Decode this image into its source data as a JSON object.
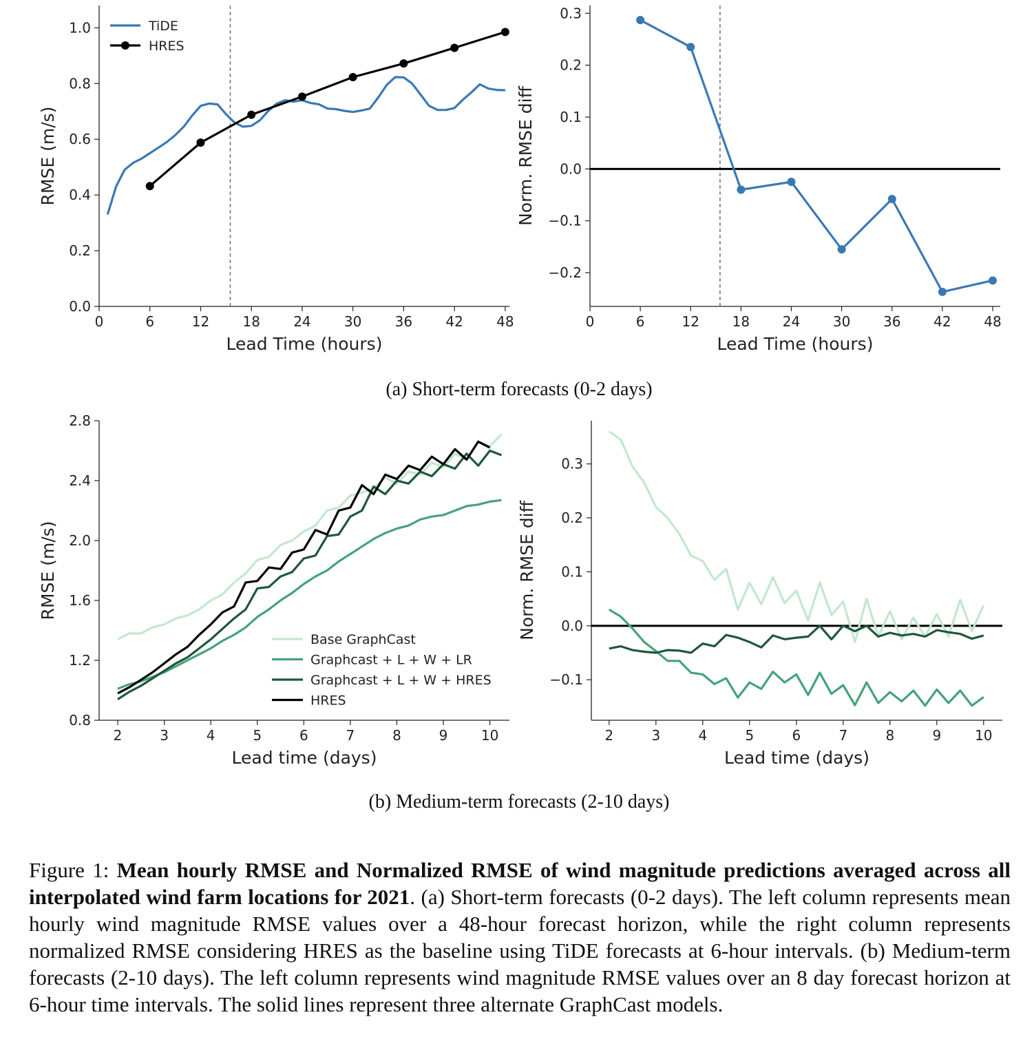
{
  "chart_data": [
    {
      "type": "line",
      "panel": "a-left",
      "xlabel": "Lead Time (hours)",
      "ylabel": "RMSE (m/s)",
      "xlim": [
        0,
        48.5
      ],
      "ylim": [
        0,
        1.08
      ],
      "xticks": [
        0,
        6,
        12,
        18,
        24,
        30,
        36,
        42,
        48
      ],
      "yticks": [
        0.0,
        0.2,
        0.4,
        0.6,
        0.8,
        1.0
      ],
      "ytick_labels": [
        "0.0",
        "0.2",
        "0.4",
        "0.6",
        "0.8",
        "1.0"
      ],
      "vline": 15.5,
      "legend": "top-left",
      "series": [
        {
          "name": "TiDE",
          "color": "#3a78b5",
          "markers": false,
          "x": [
            1,
            2,
            3,
            4,
            5,
            6,
            7,
            8,
            9,
            10,
            11,
            12,
            13,
            14,
            15,
            16,
            17,
            18,
            19,
            20,
            21,
            22,
            23,
            24,
            25,
            26,
            27,
            28,
            29,
            30,
            31,
            32,
            33,
            34,
            35,
            36,
            37,
            38,
            39,
            40,
            41,
            42,
            43,
            44,
            45,
            46,
            47,
            48
          ],
          "y": [
            0.33,
            0.43,
            0.49,
            0.515,
            0.53,
            0.55,
            0.57,
            0.59,
            0.615,
            0.645,
            0.685,
            0.72,
            0.728,
            0.725,
            0.69,
            0.66,
            0.645,
            0.648,
            0.668,
            0.702,
            0.728,
            0.74,
            0.735,
            0.74,
            0.73,
            0.725,
            0.71,
            0.708,
            0.702,
            0.698,
            0.703,
            0.71,
            0.75,
            0.795,
            0.823,
            0.822,
            0.8,
            0.76,
            0.72,
            0.705,
            0.705,
            0.712,
            0.742,
            0.768,
            0.797,
            0.782,
            0.777,
            0.776
          ]
        },
        {
          "name": "HRES",
          "color": "#000000",
          "markers": true,
          "x": [
            6,
            12,
            18,
            24,
            30,
            36,
            42,
            48
          ],
          "y": [
            0.432,
            0.588,
            0.688,
            0.753,
            0.823,
            0.872,
            0.928,
            0.985
          ]
        }
      ]
    },
    {
      "type": "line",
      "panel": "a-right",
      "xlabel": "Lead Time (hours)",
      "ylabel": "Norm. RMSE diff",
      "xlim": [
        0,
        48.9
      ],
      "ylim": [
        -0.265,
        0.315
      ],
      "xticks": [
        0,
        6,
        12,
        18,
        24,
        30,
        36,
        42,
        48
      ],
      "yticks": [
        -0.2,
        -0.1,
        0.0,
        0.1,
        0.2,
        0.3
      ],
      "ytick_labels": [
        "−0.2",
        "−0.1",
        "0.0",
        "0.1",
        "0.2",
        "0.3"
      ],
      "vline": 15.5,
      "hline": 0,
      "series": [
        {
          "color": "#3a78b5",
          "markers": true,
          "x": [
            6,
            12,
            18,
            24,
            30,
            36,
            42,
            48
          ],
          "y": [
            0.287,
            0.235,
            -0.04,
            -0.025,
            -0.155,
            -0.058,
            -0.237,
            -0.215
          ]
        }
      ]
    },
    {
      "type": "line",
      "panel": "b-left",
      "xlabel": "Lead time (days)",
      "ylabel": "RMSE (m/s)",
      "xlim": [
        1.6,
        10.42
      ],
      "ylim": [
        0.8,
        2.8
      ],
      "xticks": [
        2,
        3,
        4,
        5,
        6,
        7,
        8,
        9,
        10
      ],
      "yticks": [
        0.8,
        1.2,
        1.6,
        2.0,
        2.4,
        2.8
      ],
      "ytick_labels": [
        "0.8",
        "1.2",
        "1.6",
        "2.0",
        "2.4",
        "2.8"
      ],
      "legend": "lower-right",
      "x_start": 2,
      "x_step": 0.25,
      "series": [
        {
          "name": "Base GraphCast",
          "color": "#c3e8cd",
          "y": [
            1.34,
            1.38,
            1.38,
            1.42,
            1.44,
            1.48,
            1.5,
            1.54,
            1.6,
            1.64,
            1.72,
            1.78,
            1.87,
            1.89,
            1.97,
            2.0,
            2.06,
            2.1,
            2.2,
            2.22,
            2.3,
            2.32,
            2.35,
            2.42,
            2.38,
            2.46,
            2.44,
            2.52,
            2.49,
            2.58,
            2.54,
            2.66,
            2.63,
            2.71
          ]
        },
        {
          "name": "Graphcast + L + W + LR",
          "color": "#44a37a",
          "y": [
            1.01,
            1.04,
            1.06,
            1.09,
            1.12,
            1.16,
            1.2,
            1.24,
            1.28,
            1.33,
            1.37,
            1.42,
            1.49,
            1.54,
            1.6,
            1.65,
            1.71,
            1.76,
            1.8,
            1.86,
            1.91,
            1.96,
            2.01,
            2.05,
            2.08,
            2.1,
            2.14,
            2.16,
            2.17,
            2.2,
            2.23,
            2.24,
            2.26,
            2.27
          ]
        },
        {
          "name": "Graphcast + L + W + HRES",
          "color": "#1f573a",
          "y": [
            0.94,
            0.99,
            1.03,
            1.08,
            1.13,
            1.18,
            1.22,
            1.28,
            1.34,
            1.41,
            1.48,
            1.54,
            1.68,
            1.69,
            1.76,
            1.79,
            1.88,
            1.9,
            2.03,
            2.04,
            2.16,
            2.2,
            2.36,
            2.31,
            2.4,
            2.38,
            2.46,
            2.43,
            2.51,
            2.48,
            2.58,
            2.5,
            2.6,
            2.57
          ]
        },
        {
          "name": "HRES",
          "color": "#000000",
          "y": [
            0.98,
            1.02,
            1.07,
            1.12,
            1.18,
            1.24,
            1.29,
            1.37,
            1.44,
            1.52,
            1.56,
            1.72,
            1.73,
            1.82,
            1.81,
            1.92,
            1.94,
            2.07,
            2.04,
            2.2,
            2.22,
            2.37,
            2.31,
            2.44,
            2.41,
            2.5,
            2.47,
            2.56,
            2.51,
            2.61,
            2.54,
            2.66,
            2.62
          ]
        }
      ]
    },
    {
      "type": "line",
      "panel": "b-right",
      "xlabel": "Lead time (days)",
      "ylabel": "Norm. RMSE diff",
      "xlim": [
        1.62,
        10.4
      ],
      "ylim": [
        -0.175,
        0.38
      ],
      "xticks": [
        2,
        3,
        4,
        5,
        6,
        7,
        8,
        9,
        10
      ],
      "yticks": [
        -0.1,
        0.0,
        0.1,
        0.2,
        0.3
      ],
      "ytick_labels": [
        "−0.1",
        "0.0",
        "0.1",
        "0.2",
        "0.3"
      ],
      "hline": 0,
      "x_start": 2,
      "x_step": 0.25,
      "series": [
        {
          "color": "#c3e8cd",
          "y": [
            0.36,
            0.345,
            0.295,
            0.265,
            0.22,
            0.2,
            0.17,
            0.13,
            0.12,
            0.085,
            0.105,
            0.03,
            0.08,
            0.04,
            0.09,
            0.042,
            0.065,
            0.01,
            0.08,
            0.02,
            0.045,
            -0.03,
            0.05,
            -0.02,
            0.027,
            -0.025,
            0.015,
            -0.02,
            0.022,
            -0.02,
            0.048,
            -0.01,
            0.038
          ]
        },
        {
          "color": "#44a37a",
          "y": [
            0.03,
            0.017,
            -0.005,
            -0.03,
            -0.047,
            -0.065,
            -0.065,
            -0.087,
            -0.09,
            -0.108,
            -0.097,
            -0.133,
            -0.105,
            -0.117,
            -0.085,
            -0.105,
            -0.09,
            -0.128,
            -0.087,
            -0.126,
            -0.11,
            -0.147,
            -0.105,
            -0.143,
            -0.123,
            -0.14,
            -0.12,
            -0.148,
            -0.118,
            -0.143,
            -0.12,
            -0.148,
            -0.132
          ]
        },
        {
          "color": "#1f573a",
          "y": [
            -0.042,
            -0.038,
            -0.045,
            -0.048,
            -0.05,
            -0.045,
            -0.046,
            -0.05,
            -0.033,
            -0.038,
            -0.017,
            -0.022,
            -0.03,
            -0.04,
            -0.018,
            -0.025,
            -0.022,
            -0.02,
            0.0,
            -0.025,
            0.0,
            -0.01,
            0.0,
            -0.02,
            -0.013,
            -0.018,
            -0.015,
            -0.02,
            -0.008,
            -0.012,
            -0.015,
            -0.024,
            -0.018
          ]
        }
      ]
    }
  ],
  "subcaptions": {
    "a": "(a) Short-term forecasts (0-2 days)",
    "b": "(b) Medium-term forecasts (2-10 days)"
  },
  "caption": {
    "label": "Figure 1:",
    "bold": "Mean hourly RMSE and Normalized RMSE of wind magnitude predictions averaged across all interpolated wind farm locations for 2021",
    "rest": ". (a) Short-term forecasts (0-2 days). The left column represents mean hourly wind magnitude RMSE values over a 48-hour forecast horizon, while the right column represents normalized RMSE considering HRES as the baseline using TiDE forecasts at 6-hour intervals. (b) Medium-term forecasts (2-10 days). The left column represents wind magnitude RMSE values over an 8 day forecast horizon at 6-hour time intervals. The solid lines represent three alternate GraphCast models."
  }
}
